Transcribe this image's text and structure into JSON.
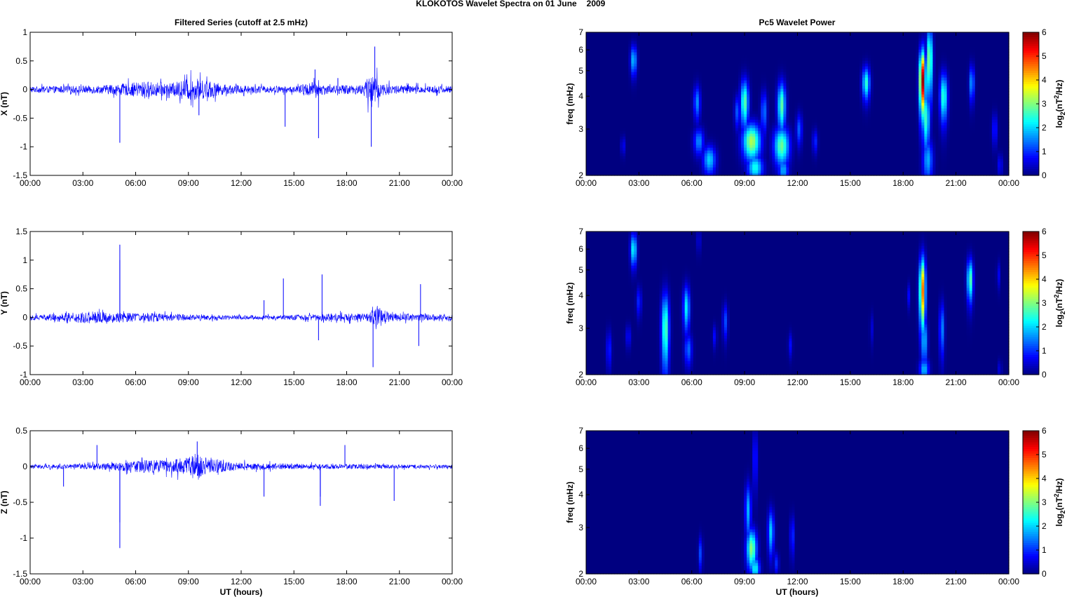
{
  "figure": {
    "suptitle": "KLOKOTOS Wavelet Spectra on 01 June",
    "suptitle_year": "2009",
    "left_column_title": "Filtered Series (cutoff at 2.5 mHz)",
    "right_column_title": "Pc5 Wavelet Power",
    "xlabel": "UT (hours)",
    "spectrum_ylabel": "freq (mHz)",
    "colorbar_label": "log2(nT2/Hz)"
  },
  "chart_data": [
    {
      "type": "line",
      "panel": "X",
      "ylabel": "X (nT)",
      "ylim": [
        -1.5,
        1
      ],
      "yticks": [
        "-1.5",
        "-1",
        "-0.5",
        "0",
        "0.5",
        "1"
      ],
      "xlim": [
        0,
        24
      ],
      "xticks": [
        "00:00",
        "03:00",
        "06:00",
        "09:00",
        "12:00",
        "15:00",
        "18:00",
        "21:00",
        "00:00"
      ],
      "color": "#0000ff",
      "noise_envelope": [
        [
          0,
          0.06
        ],
        [
          2,
          0.07
        ],
        [
          4,
          0.08
        ],
        [
          5.5,
          0.12
        ],
        [
          6.5,
          0.16
        ],
        [
          8,
          0.12
        ],
        [
          9,
          0.22
        ],
        [
          10,
          0.18
        ],
        [
          11,
          0.1
        ],
        [
          13,
          0.07
        ],
        [
          15,
          0.06
        ],
        [
          16,
          0.15
        ],
        [
          17,
          0.08
        ],
        [
          19,
          0.1
        ],
        [
          19.4,
          0.4
        ],
        [
          20,
          0.12
        ],
        [
          21,
          0.08
        ],
        [
          24,
          0.07
        ]
      ],
      "spikes": [
        [
          5.1,
          -0.93
        ],
        [
          9.6,
          -0.45
        ],
        [
          14.5,
          -0.65
        ],
        [
          16.4,
          -0.85
        ],
        [
          16.2,
          0.35
        ],
        [
          19.4,
          -1.0
        ],
        [
          19.6,
          0.75
        ],
        [
          17.5,
          0.2
        ]
      ]
    },
    {
      "type": "line",
      "panel": "Y",
      "ylabel": "Y (nT)",
      "ylim": [
        -1,
        1.5
      ],
      "yticks": [
        "-1",
        "-0.5",
        "0",
        "0.5",
        "1",
        "1.5"
      ],
      "xlim": [
        0,
        24
      ],
      "xticks": [
        "00:00",
        "03:00",
        "06:00",
        "09:00",
        "12:00",
        "15:00",
        "18:00",
        "21:00",
        "00:00"
      ],
      "color": "#0000ff",
      "noise_envelope": [
        [
          0,
          0.05
        ],
        [
          2,
          0.08
        ],
        [
          3,
          0.12
        ],
        [
          5,
          0.1
        ],
        [
          6,
          0.09
        ],
        [
          8,
          0.07
        ],
        [
          10,
          0.05
        ],
        [
          12,
          0.04
        ],
        [
          14,
          0.04
        ],
        [
          16,
          0.06
        ],
        [
          17,
          0.08
        ],
        [
          19,
          0.07
        ],
        [
          19.8,
          0.2
        ],
        [
          20.5,
          0.08
        ],
        [
          22,
          0.07
        ],
        [
          24,
          0.05
        ]
      ],
      "spikes": [
        [
          5.1,
          1.27
        ],
        [
          5.1,
          1.0
        ],
        [
          14.4,
          0.68
        ],
        [
          16.6,
          0.75
        ],
        [
          16.4,
          -0.4
        ],
        [
          19.5,
          -0.87
        ],
        [
          22.2,
          0.58
        ],
        [
          22.1,
          -0.5
        ],
        [
          13.3,
          0.3
        ]
      ]
    },
    {
      "type": "line",
      "panel": "Z",
      "ylabel": "Z (nT)",
      "ylim": [
        -1.5,
        0.5
      ],
      "yticks": [
        "-1.5",
        "-1",
        "-0.5",
        "0",
        "0.5"
      ],
      "xlim": [
        0,
        24
      ],
      "xticks": [
        "00:00",
        "03:00",
        "06:00",
        "09:00",
        "12:00",
        "15:00",
        "18:00",
        "21:00",
        "00:00"
      ],
      "color": "#0000ff",
      "noise_envelope": [
        [
          0,
          0.03
        ],
        [
          3,
          0.04
        ],
        [
          5,
          0.06
        ],
        [
          6.5,
          0.1
        ],
        [
          8,
          0.1
        ],
        [
          9.5,
          0.18
        ],
        [
          10.5,
          0.1
        ],
        [
          12,
          0.06
        ],
        [
          14,
          0.05
        ],
        [
          16,
          0.04
        ],
        [
          18,
          0.04
        ],
        [
          21,
          0.03
        ],
        [
          24,
          0.03
        ]
      ],
      "spikes": [
        [
          5.1,
          -1.14
        ],
        [
          5.1,
          -0.78
        ],
        [
          3.8,
          0.3
        ],
        [
          1.9,
          -0.28
        ],
        [
          9.5,
          0.35
        ],
        [
          16.5,
          -0.55
        ],
        [
          16.5,
          -0.42
        ],
        [
          17.9,
          0.3
        ],
        [
          20.7,
          -0.48
        ],
        [
          13.3,
          -0.42
        ]
      ]
    },
    {
      "type": "heatmap",
      "panel": "X spectrum",
      "ylabel": "freq (mHz)",
      "ylim": [
        2,
        7
      ],
      "yscale": "log",
      "yticks": [
        "2",
        "3",
        "4",
        "5",
        "6",
        "7"
      ],
      "xlim": [
        0,
        24
      ],
      "xticks": [
        "00:00",
        "03:00",
        "06:00",
        "09:00",
        "12:00",
        "15:00",
        "18:00",
        "21:00",
        "00:00"
      ],
      "colormap": "jet",
      "clim": [
        0,
        6
      ],
      "colorbar_ticks": [
        "0",
        "1",
        "2",
        "3",
        "4",
        "5",
        "6"
      ],
      "blobs": [
        [
          2.7,
          5.5,
          0.12,
          0.5,
          2.0
        ],
        [
          2.1,
          2.6,
          0.08,
          0.15,
          0.8
        ],
        [
          6.3,
          3.8,
          0.13,
          0.4,
          1.6
        ],
        [
          6.4,
          2.7,
          0.2,
          0.22,
          1.6
        ],
        [
          7.0,
          2.3,
          0.25,
          0.2,
          2.0
        ],
        [
          8.6,
          3.5,
          0.12,
          0.35,
          1.3
        ],
        [
          9.0,
          3.8,
          0.16,
          0.55,
          2.8
        ],
        [
          9.4,
          2.7,
          0.35,
          0.3,
          3.3
        ],
        [
          9.6,
          2.15,
          0.3,
          0.16,
          2.4
        ],
        [
          10.1,
          3.5,
          0.12,
          0.45,
          1.5
        ],
        [
          11.1,
          3.7,
          0.16,
          0.55,
          2.8
        ],
        [
          11.1,
          2.6,
          0.3,
          0.3,
          2.9
        ],
        [
          11.2,
          2.1,
          0.2,
          0.15,
          1.8
        ],
        [
          12.1,
          3.0,
          0.12,
          0.3,
          1.3
        ],
        [
          13.0,
          2.7,
          0.1,
          0.2,
          1.0
        ],
        [
          15.9,
          4.5,
          0.15,
          0.45,
          2.5
        ],
        [
          19.1,
          4.6,
          0.12,
          0.9,
          5.9
        ],
        [
          19.3,
          3.3,
          0.15,
          0.6,
          2.6
        ],
        [
          19.4,
          2.3,
          0.2,
          0.3,
          1.8
        ],
        [
          19.5,
          5.5,
          0.12,
          1.2,
          3.2
        ],
        [
          20.3,
          4.0,
          0.15,
          0.6,
          2.6
        ],
        [
          21.9,
          4.5,
          0.1,
          0.5,
          1.8
        ],
        [
          23.2,
          3.0,
          0.1,
          0.3,
          1.0
        ],
        [
          23.5,
          2.2,
          0.1,
          0.15,
          0.8
        ]
      ]
    },
    {
      "type": "heatmap",
      "panel": "Y spectrum",
      "ylabel": "freq (mHz)",
      "ylim": [
        2,
        7
      ],
      "yscale": "log",
      "yticks": [
        "2",
        "3",
        "4",
        "5",
        "6",
        "7"
      ],
      "xlim": [
        0,
        24
      ],
      "xticks": [
        "00:00",
        "03:00",
        "06:00",
        "09:00",
        "12:00",
        "15:00",
        "18:00",
        "21:00",
        "00:00"
      ],
      "colormap": "jet",
      "clim": [
        0,
        6
      ],
      "colorbar_ticks": [
        "0",
        "1",
        "2",
        "3",
        "4",
        "5",
        "6"
      ],
      "blobs": [
        [
          2.7,
          6.0,
          0.12,
          0.6,
          2.4
        ],
        [
          1.3,
          2.5,
          0.1,
          0.3,
          1.0
        ],
        [
          3.0,
          3.8,
          0.1,
          0.35,
          1.0
        ],
        [
          2.4,
          2.8,
          0.1,
          0.2,
          0.8
        ],
        [
          4.5,
          3.0,
          0.15,
          0.7,
          2.8
        ],
        [
          5.7,
          3.6,
          0.13,
          0.5,
          2.2
        ],
        [
          5.8,
          2.5,
          0.15,
          0.25,
          1.4
        ],
        [
          6.4,
          6.5,
          0.06,
          0.5,
          0.9
        ],
        [
          7.9,
          3.2,
          0.1,
          0.35,
          1.2
        ],
        [
          7.3,
          2.8,
          0.08,
          0.2,
          0.8
        ],
        [
          11.6,
          2.6,
          0.08,
          0.2,
          0.8
        ],
        [
          16.2,
          3.0,
          0.06,
          0.3,
          0.6
        ],
        [
          18.3,
          4.0,
          0.06,
          0.3,
          0.8
        ],
        [
          19.1,
          4.2,
          0.12,
          0.9,
          4.6
        ],
        [
          19.2,
          2.7,
          0.12,
          0.4,
          2.0
        ],
        [
          19.2,
          2.1,
          0.18,
          0.14,
          1.9
        ],
        [
          20.2,
          3.0,
          0.1,
          0.5,
          1.6
        ],
        [
          21.8,
          4.6,
          0.12,
          0.6,
          2.8
        ],
        [
          23.4,
          4.8,
          0.06,
          0.4,
          0.8
        ],
        [
          23.5,
          2.1,
          0.06,
          0.12,
          0.8
        ]
      ]
    },
    {
      "type": "heatmap",
      "panel": "Z spectrum",
      "ylabel": "freq (mHz)",
      "ylim": [
        2,
        7
      ],
      "yscale": "log",
      "yticks": [
        "2",
        "3",
        "4",
        "5",
        "6",
        "7"
      ],
      "xlim": [
        0,
        24
      ],
      "xticks": [
        "00:00",
        "03:00",
        "06:00",
        "09:00",
        "12:00",
        "15:00",
        "18:00",
        "21:00",
        "00:00"
      ],
      "colormap": "jet",
      "clim": [
        0,
        6
      ],
      "colorbar_ticks": [
        "0",
        "1",
        "2",
        "3",
        "4",
        "5",
        "6"
      ],
      "blobs": [
        [
          6.5,
          2.4,
          0.08,
          0.25,
          1.2
        ],
        [
          9.2,
          3.5,
          0.12,
          0.6,
          1.8
        ],
        [
          9.4,
          2.5,
          0.2,
          0.3,
          3.1
        ],
        [
          9.6,
          2.1,
          0.18,
          0.15,
          2.3
        ],
        [
          9.6,
          5.5,
          0.08,
          1.0,
          1.2
        ],
        [
          10.5,
          2.9,
          0.12,
          0.4,
          2.0
        ],
        [
          10.8,
          2.2,
          0.1,
          0.15,
          1.0
        ],
        [
          11.7,
          2.8,
          0.08,
          0.35,
          1.2
        ]
      ]
    }
  ]
}
